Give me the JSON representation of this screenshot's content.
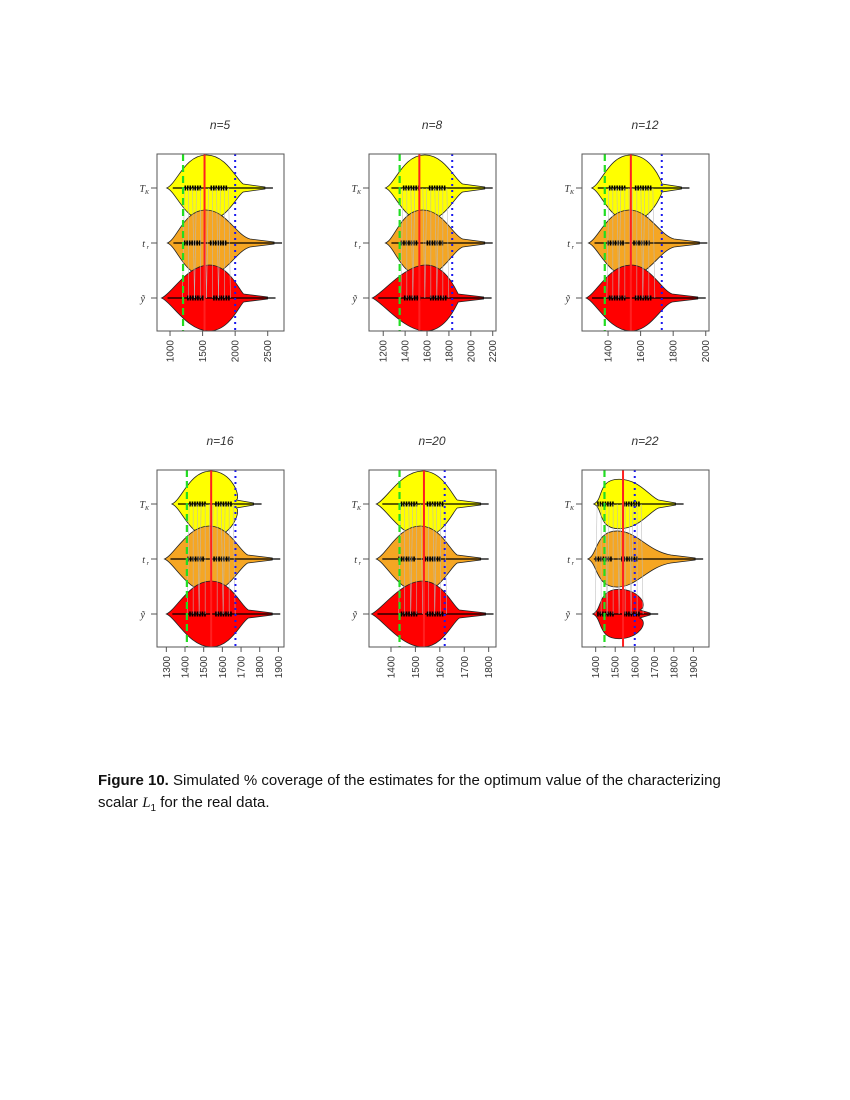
{
  "figure": {
    "caption_label": "Figure 10.",
    "caption_text_1": " Simulated % coverage of the estimates for the optimum value of the characterizing",
    "caption_text_2a": "scalar ",
    "caption_math": "L",
    "caption_sub": "1",
    "caption_text_2b": " for the real data."
  },
  "colors": {
    "T_K": "#ffff00",
    "t_r": "#f5a623",
    "y_tilde": "#ff0000",
    "red_line": "#ff2020",
    "green_line": "#22dd22",
    "blue_line": "#1a1aee",
    "frame": "#555555"
  },
  "chart_data": [
    {
      "type": "violin",
      "title": "n=5",
      "categories": [
        "T_K",
        "t_r",
        "ỹ"
      ],
      "xticks": [
        1000,
        1500,
        2000,
        2500
      ],
      "xlim": [
        800,
        2750
      ],
      "reference_lines": {
        "green_dashed": 1200,
        "red_solid": 1530,
        "blue_dotted": 2000
      },
      "series": [
        {
          "name": "T_K",
          "min": 950,
          "median": 1560,
          "max": 2580,
          "mode_width": 1.0
        },
        {
          "name": "t_r",
          "min": 960,
          "median": 1550,
          "max": 2720,
          "mode_width": 1.0
        },
        {
          "name": "ỹ",
          "min": 870,
          "median": 1600,
          "max": 2620,
          "mode_width": 1.0
        }
      ]
    },
    {
      "type": "violin",
      "title": "n=8",
      "categories": [
        "T_K",
        "t_r",
        "ỹ"
      ],
      "xticks": [
        1200,
        1400,
        1600,
        1800,
        2000,
        2200
      ],
      "xlim": [
        1070,
        2230
      ],
      "reference_lines": {
        "green_dashed": 1350,
        "red_solid": 1530,
        "blue_dotted": 1830
      },
      "series": [
        {
          "name": "T_K",
          "min": 1220,
          "median": 1580,
          "max": 2200,
          "mode_width": 1.0
        },
        {
          "name": "t_r",
          "min": 1220,
          "median": 1560,
          "max": 2200,
          "mode_width": 1.0
        },
        {
          "name": "ỹ",
          "min": 1100,
          "median": 1590,
          "max": 2190,
          "mode_width": 1.0
        }
      ]
    },
    {
      "type": "violin",
      "title": "n=12",
      "categories": [
        "T_K",
        "t_r",
        "ỹ"
      ],
      "xticks": [
        1400,
        1600,
        1800,
        2000
      ],
      "xlim": [
        1240,
        2020
      ],
      "reference_lines": {
        "green_dashed": 1380,
        "red_solid": 1540,
        "blue_dotted": 1730
      },
      "series": [
        {
          "name": "T_K",
          "min": 1300,
          "median": 1540,
          "max": 1900,
          "mode_width": 1.0
        },
        {
          "name": "t_r",
          "min": 1280,
          "median": 1530,
          "max": 2010,
          "mode_width": 1.0
        },
        {
          "name": "ỹ",
          "min": 1265,
          "median": 1540,
          "max": 2000,
          "mode_width": 1.0
        }
      ]
    },
    {
      "type": "violin",
      "title": "n=16",
      "categories": [
        "T_K",
        "t_r",
        "ỹ"
      ],
      "xticks": [
        1300,
        1400,
        1500,
        1600,
        1700,
        1800,
        1900
      ],
      "xlim": [
        1250,
        1930
      ],
      "reference_lines": {
        "green_dashed": 1410,
        "red_solid": 1540,
        "blue_dotted": 1670
      },
      "series": [
        {
          "name": "T_K",
          "min": 1330,
          "median": 1540,
          "max": 1810,
          "mode_width": 1.0
        },
        {
          "name": "t_r",
          "min": 1290,
          "median": 1530,
          "max": 1910,
          "mode_width": 1.0
        },
        {
          "name": "ỹ",
          "min": 1300,
          "median": 1540,
          "max": 1910,
          "mode_width": 1.0
        }
      ]
    },
    {
      "type": "violin",
      "title": "n=20",
      "categories": [
        "T_K",
        "t_r",
        "ỹ"
      ],
      "xticks": [
        1400,
        1500,
        1600,
        1700,
        1800
      ],
      "xlim": [
        1310,
        1830
      ],
      "reference_lines": {
        "green_dashed": 1435,
        "red_solid": 1535,
        "blue_dotted": 1620
      },
      "series": [
        {
          "name": "T_K",
          "min": 1340,
          "median": 1530,
          "max": 1800,
          "mode_width": 1.0
        },
        {
          "name": "t_r",
          "min": 1340,
          "median": 1520,
          "max": 1800,
          "mode_width": 1.0
        },
        {
          "name": "ỹ",
          "min": 1320,
          "median": 1530,
          "max": 1820,
          "mode_width": 1.0
        }
      ]
    },
    {
      "type": "violin",
      "title": "n=22",
      "categories": [
        "T_K",
        "t_r",
        "ỹ"
      ],
      "xticks": [
        1400,
        1500,
        1600,
        1700,
        1800,
        1900
      ],
      "xlim": [
        1330,
        1980
      ],
      "reference_lines": {
        "green_dashed": 1445,
        "red_solid": 1540,
        "blue_dotted": 1600
      },
      "series": [
        {
          "name": "T_K",
          "min": 1390,
          "median": 1520,
          "max": 1850,
          "mode_width": 0.75
        },
        {
          "name": "t_r",
          "min": 1360,
          "median": 1510,
          "max": 1950,
          "mode_width": 0.85
        },
        {
          "name": "ỹ",
          "min": 1385,
          "median": 1520,
          "max": 1720,
          "mode_width": 0.75
        }
      ]
    }
  ]
}
